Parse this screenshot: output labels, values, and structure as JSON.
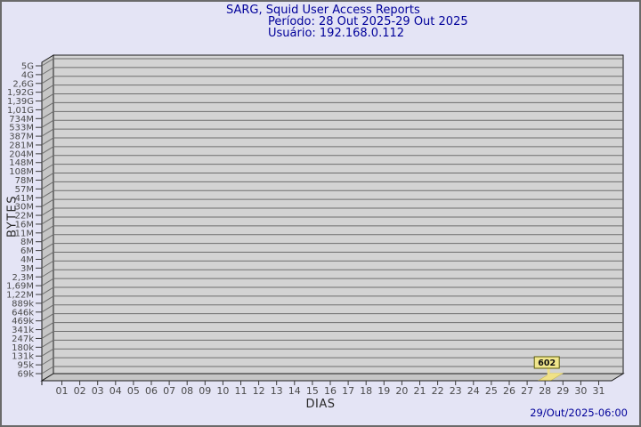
{
  "page": {
    "bg_color": "#e4e4f5",
    "border_color": "#6a6a6a"
  },
  "header": {
    "title": "SARG, Squid User Access Reports",
    "period": "Período: 28 Out 2025-29 Out 2025",
    "user": "Usuário: 192.168.0.112",
    "text_color": "#00009a"
  },
  "footer": {
    "generated": "29/Out/2025-06:00"
  },
  "chart_data": {
    "type": "bar",
    "style": "3d-single-series",
    "title": "SARG, Squid User Access Reports",
    "subtitle": "Período: 28 Out 2025-29 Out 2025 — Usuário: 192.168.0.112",
    "xlabel": "DIAS",
    "ylabel": "BYTES",
    "y_scale": "log-like",
    "grid": true,
    "legend": "none",
    "y_tick_labels": [
      "5G",
      "4G",
      "2,6G",
      "1,92G",
      "1,39G",
      "1,01G",
      "734M",
      "533M",
      "387M",
      "281M",
      "204M",
      "148M",
      "108M",
      "78M",
      "57M",
      "41M",
      "30M",
      "22M",
      "16M",
      "11M",
      "8M",
      "6M",
      "4M",
      "3M",
      "2,3M",
      "1,69M",
      "1,22M",
      "889k",
      "646k",
      "469k",
      "341k",
      "247k",
      "180k",
      "131k",
      "95k",
      "69k"
    ],
    "categories": [
      "01",
      "02",
      "03",
      "04",
      "05",
      "06",
      "07",
      "08",
      "09",
      "10",
      "11",
      "12",
      "13",
      "14",
      "15",
      "16",
      "17",
      "18",
      "19",
      "20",
      "21",
      "22",
      "23",
      "24",
      "25",
      "26",
      "27",
      "28",
      "29",
      "30",
      "31"
    ],
    "values": [
      0,
      0,
      0,
      0,
      0,
      0,
      0,
      0,
      0,
      0,
      0,
      0,
      0,
      0,
      0,
      0,
      0,
      0,
      0,
      0,
      0,
      0,
      0,
      0,
      0,
      0,
      0,
      602,
      0,
      0,
      0
    ],
    "value_labels": [
      {
        "category": "28",
        "label": "602"
      }
    ],
    "colors": {
      "plot_bg": "#d3d3d3",
      "wall": "#c6c6c6",
      "grid": "#6e6e6e",
      "axis": "#1a1a1a",
      "tick": "#3a3a3a",
      "tick_text": "#4a4a4a",
      "bar": "#f0e187",
      "bar_edge": "#c9b94e",
      "annotation_bg": "#f0e68c",
      "annotation_border": "#5c5c0a",
      "annotation_text": "#111111"
    }
  }
}
